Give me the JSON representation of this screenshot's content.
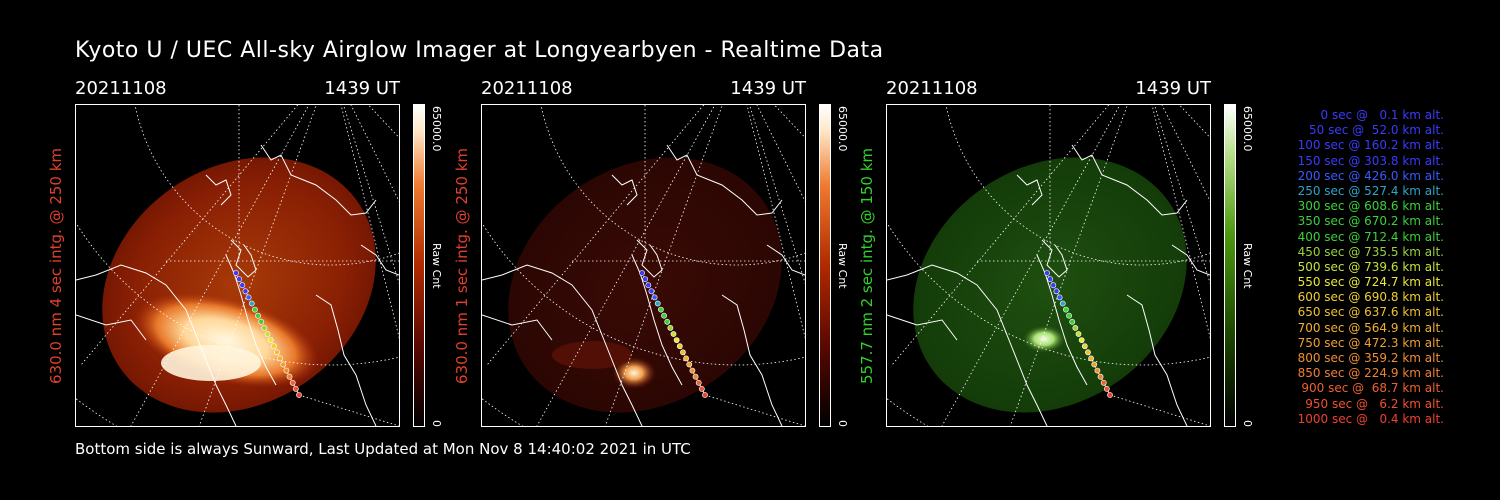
{
  "title": "Kyoto U / UEC All-sky Airglow Imager at Longyearbyen - Realtime Data",
  "footer": "Bottom side is always Sunward, Last Updated at Mon Nov  8 14:40:02 2021 in UTC",
  "panels": [
    {
      "date": "20211108",
      "time": "1439 UT",
      "ylabel": "630.0 nm 4 sec intg. @ 250 km",
      "cbar_max": "65000.0",
      "cbar_title": "Raw Cnt",
      "cbar_min": "0",
      "label_color": "#e0402c",
      "palette": "red"
    },
    {
      "date": "20211108",
      "time": "1439 UT",
      "ylabel": "630.0 nm 1 sec intg. @ 250 km",
      "cbar_max": "65000.0",
      "cbar_title": "Raw Cnt",
      "cbar_min": "0",
      "label_color": "#e0402c",
      "palette": "red"
    },
    {
      "date": "20211108",
      "time": "1439 UT",
      "ylabel": "557.7 nm 2 sec intg. @ 150 km",
      "cbar_max": "65000.0",
      "cbar_title": "Raw Cnt",
      "cbar_min": "0",
      "label_color": "#33d12b",
      "palette": "green"
    }
  ],
  "legend": [
    {
      "text": "0 sec @   0.1 km alt.",
      "color": "#3a3aff"
    },
    {
      "text": "50 sec @  52.0 km alt.",
      "color": "#3a3aff"
    },
    {
      "text": "100 sec @ 160.2 km alt.",
      "color": "#3a3aff"
    },
    {
      "text": "150 sec @ 303.8 km alt.",
      "color": "#3a3aff"
    },
    {
      "text": "200 sec @ 426.0 km alt.",
      "color": "#3a5aff"
    },
    {
      "text": "250 sec @ 527.4 km alt.",
      "color": "#2aa6c8"
    },
    {
      "text": "300 sec @ 608.6 km alt.",
      "color": "#3ad13a"
    },
    {
      "text": "350 sec @ 670.2 km alt.",
      "color": "#3ad13a"
    },
    {
      "text": "400 sec @ 712.4 km alt.",
      "color": "#3ad13a"
    },
    {
      "text": "450 sec @ 735.5 km alt.",
      "color": "#9ad13a"
    },
    {
      "text": "500 sec @ 739.6 km alt.",
      "color": "#c8e03a"
    },
    {
      "text": "550 sec @ 724.7 km alt.",
      "color": "#e8e83a"
    },
    {
      "text": "600 sec @ 690.8 km alt.",
      "color": "#f0d030"
    },
    {
      "text": "650 sec @ 637.6 km alt.",
      "color": "#f0c030"
    },
    {
      "text": "700 sec @ 564.9 km alt.",
      "color": "#f0b030"
    },
    {
      "text": "750 sec @ 472.3 km alt.",
      "color": "#f0a030"
    },
    {
      "text": "800 sec @ 359.2 km alt.",
      "color": "#f09030"
    },
    {
      "text": "850 sec @ 224.9 km alt.",
      "color": "#f08030"
    },
    {
      "text": "900 sec @  68.7 km alt.",
      "color": "#f06030"
    },
    {
      "text": "950 sec @   6.2 km alt.",
      "color": "#f05030"
    },
    {
      "text": "1000 sec @   0.4 km alt.",
      "color": "#f04030"
    }
  ]
}
